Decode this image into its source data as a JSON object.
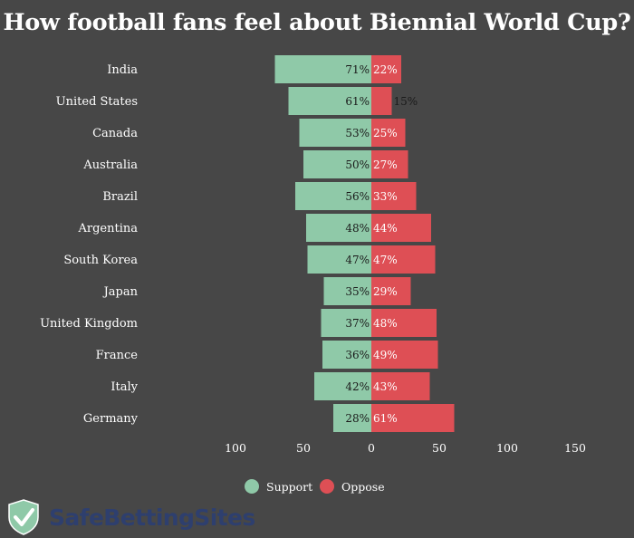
{
  "colors": {
    "support": "#8fc9a8",
    "oppose": "#de4f55",
    "background": "#474747"
  },
  "brand": {
    "name": "SafeBettingSites",
    "shield_color": "#8fc9a8",
    "text_color": "#2e3f6e"
  },
  "chart_data": {
    "type": "bar",
    "orientation": "horizontal-diverging",
    "title": "How football fans feel about Biennial World Cup?",
    "categories": [
      "India",
      "United States",
      "Canada",
      "Australia",
      "Brazil",
      "Argentina",
      "South Korea",
      "Japan",
      "United Kingdom",
      "France",
      "Italy",
      "Germany"
    ],
    "series": [
      {
        "name": "Support",
        "direction": "left",
        "values": [
          71,
          61,
          53,
          50,
          56,
          48,
          47,
          35,
          37,
          36,
          42,
          28
        ]
      },
      {
        "name": "Oppose",
        "direction": "right",
        "values": [
          22,
          15,
          25,
          27,
          33,
          44,
          47,
          29,
          48,
          49,
          43,
          61
        ]
      }
    ],
    "value_labels": {
      "support": [
        "71%",
        "61%",
        "53%",
        "50%",
        "56%",
        "48%",
        "47%",
        "35%",
        "37%",
        "36%",
        "42%",
        "28%"
      ],
      "oppose": [
        "22%",
        "15%",
        "25%",
        "27%",
        "33%",
        "44%",
        "47%",
        "29%",
        "48%",
        "49%",
        "43%",
        "61%"
      ]
    },
    "xlim": [
      -100,
      150
    ],
    "x_ticks": [
      {
        "value": -100,
        "label": "100"
      },
      {
        "value": -50,
        "label": "50"
      },
      {
        "value": 0,
        "label": "0"
      },
      {
        "value": 50,
        "label": "50"
      },
      {
        "value": 100,
        "label": "100"
      },
      {
        "value": 150,
        "label": "150"
      }
    ],
    "legend": {
      "position": "bottom-center",
      "entries": [
        "Support",
        "Oppose"
      ]
    },
    "grid": false
  }
}
